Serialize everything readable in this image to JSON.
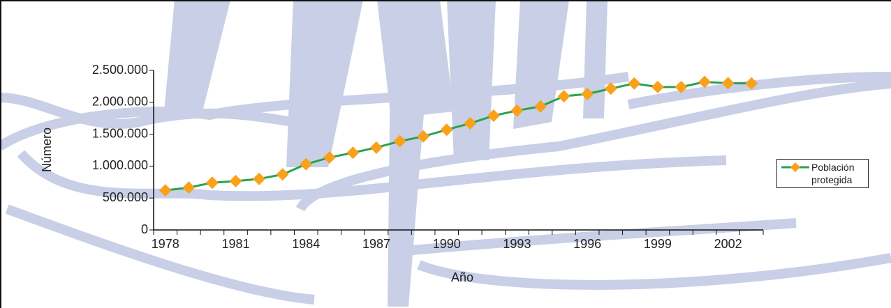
{
  "chart_data": {
    "type": "line",
    "x_label": "Año",
    "y_label": "Número",
    "categories": [
      "1978",
      null,
      null,
      "1981",
      null,
      null,
      "1984",
      null,
      null,
      "1987",
      null,
      null,
      "1990",
      null,
      null,
      "1993",
      null,
      null,
      "1996",
      null,
      null,
      "1999",
      null,
      null,
      "2002",
      null
    ],
    "series": [
      {
        "name": "Población protegida",
        "color": "#2ba24c",
        "marker_color": "#f9a11b",
        "values": [
          620000,
          665000,
          740000,
          765000,
          800000,
          870000,
          1030000,
          1135000,
          1210000,
          1290000,
          1390000,
          1465000,
          1570000,
          1670000,
          1790000,
          1870000,
          1935000,
          2095000,
          2130000,
          2215000,
          2295000,
          2240000,
          2240000,
          2320000,
          2300000,
          2295000
        ]
      }
    ],
    "ylim": [
      0,
      2500000
    ],
    "yticks": [
      0,
      {
        "value": 500000,
        "label": "500.000"
      },
      {
        "value": 1000000,
        "label": "1.000.000"
      },
      {
        "value": 1500000,
        "label": "1.500.000"
      },
      {
        "value": 2000000,
        "label": "2.000.000"
      },
      {
        "value": 2500000,
        "label": "2.500.000"
      }
    ],
    "grid": false,
    "legend": "right"
  }
}
